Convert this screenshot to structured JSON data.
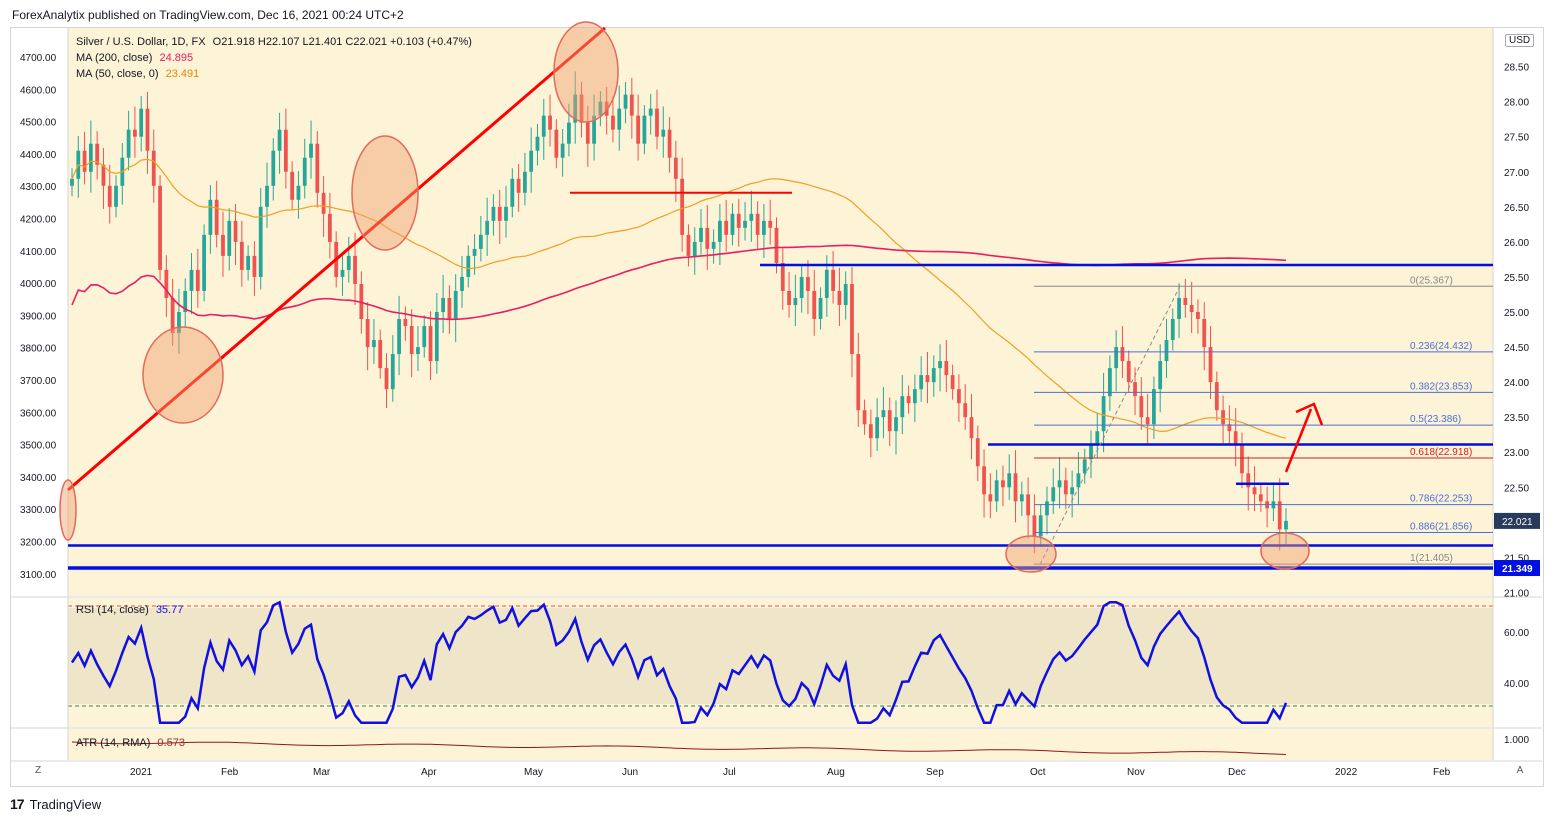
{
  "publisher_line": "ForexAnalytix published on TradingView.com, Dec 16, 2021 00:24 UTC+2",
  "legend": {
    "symbol": "Silver / U.S. Dollar, 1D, FX",
    "ohlc": "O21.918  H22.107  L21.401  C22.021  +0.103 (+0.47%)",
    "ma200_label": "MA (200, close)",
    "ma200_value": "24.895",
    "ma50_label": "MA (50, close, 0)",
    "ma50_value": "23.491",
    "rsi_label": "RSI (14, close)",
    "rsi_value": "35.77",
    "atr_label": "ATR (14, RMA)",
    "atr_value": "0.573"
  },
  "colors": {
    "background": "#fdf3d6",
    "candle_up": "#26a69a",
    "candle_down": "#ef5350",
    "ma200": "#e91e63",
    "ma50": "#f0a020",
    "rsi": "#1010e0",
    "trend": "#ff0000",
    "support": "#0010e0"
  },
  "currency_button": "USD",
  "logo_text": "TradingView",
  "corner_left": "Z",
  "corner_right": "A",
  "chart_data": {
    "type": "candlestick",
    "left_axis_ticks": [
      "4700.00",
      "4600.00",
      "4500.00",
      "4400.00",
      "4300.00",
      "4200.00",
      "4100.00",
      "4000.00",
      "3900.00",
      "3800.00",
      "3700.00",
      "3600.00",
      "3500.00",
      "3400.00",
      "3300.00",
      "3200.00",
      "3100.00"
    ],
    "right_axis_ticks": [
      "28.50",
      "28.00",
      "27.50",
      "27.00",
      "26.50",
      "26.00",
      "25.50",
      "25.00",
      "24.50",
      "24.00",
      "23.50",
      "23.00",
      "22.50",
      "22.00",
      "21.50",
      "21.00"
    ],
    "right_axis_ylim": [
      20.95,
      29.05
    ],
    "x_ticks": [
      "2021",
      "Feb",
      "Mar",
      "Apr",
      "May",
      "Jun",
      "Jul",
      "Aug",
      "Sep",
      "Oct",
      "Nov",
      "Dec",
      "2022",
      "Feb"
    ],
    "price_badges": {
      "last": "22.021",
      "support": "21.349"
    },
    "fib_levels": [
      {
        "label": "0(25.367)",
        "value": 25.367
      },
      {
        "label": "0.236(24.432)",
        "value": 24.432
      },
      {
        "label": "0.382(23.853)",
        "value": 23.853
      },
      {
        "label": "0.5(23.386)",
        "value": 23.386
      },
      {
        "label": "0.618(22.918)",
        "value": 22.918
      },
      {
        "label": "0.786(22.253)",
        "value": 22.253
      },
      {
        "label": "0.886(21.856)",
        "value": 21.856
      },
      {
        "label": "1(21.405)",
        "value": 21.405
      }
    ],
    "horizontal_levels": [
      25.67,
      23.11,
      21.67,
      21.349
    ],
    "rsi_ticks": [
      "60.00",
      "40.00"
    ],
    "atr_ticks": [
      "1.000"
    ],
    "close_series": [
      26.9,
      27.3,
      27.0,
      27.4,
      27.1,
      26.8,
      26.5,
      26.8,
      27.2,
      27.6,
      27.5,
      27.9,
      27.3,
      26.8,
      25.6,
      25.2,
      24.7,
      25.0,
      25.3,
      25.6,
      25.3,
      26.1,
      26.6,
      26.1,
      25.8,
      26.3,
      26.0,
      25.6,
      25.8,
      25.5,
      26.5,
      26.8,
      27.3,
      27.6,
      27.0,
      26.6,
      26.8,
      27.2,
      27.4,
      26.7,
      26.4,
      26.0,
      25.5,
      25.6,
      25.8,
      25.4,
      24.9,
      24.5,
      24.6,
      24.2,
      23.9,
      24.4,
      24.9,
      24.8,
      24.4,
      24.5,
      24.8,
      24.3,
      25.0,
      25.2,
      24.9,
      25.3,
      25.5,
      25.8,
      25.9,
      26.1,
      26.3,
      26.5,
      26.3,
      26.5,
      26.9,
      26.7,
      27.0,
      27.3,
      27.5,
      27.8,
      27.6,
      27.2,
      27.4,
      27.7,
      28.1,
      27.7,
      27.4,
      27.8,
      28.0,
      27.8,
      27.6,
      27.9,
      28.1,
      27.8,
      27.4,
      27.8,
      27.9,
      27.5,
      27.6,
      27.2,
      26.9,
      26.1,
      25.8,
      26.0,
      26.2,
      25.9,
      26.0,
      26.3,
      26.1,
      26.4,
      26.2,
      26.3,
      26.4,
      26.1,
      26.3,
      26.2,
      25.7,
      25.3,
      25.1,
      25.2,
      25.5,
      25.3,
      24.9,
      25.2,
      25.6,
      25.3,
      25.1,
      25.4,
      24.4,
      23.6,
      23.4,
      23.2,
      23.5,
      23.6,
      23.3,
      23.5,
      23.8,
      23.7,
      23.9,
      24.1,
      24.0,
      24.2,
      24.3,
      24.1,
      23.9,
      23.7,
      23.5,
      23.2,
      22.8,
      22.4,
      22.3,
      22.6,
      22.5,
      22.7,
      22.3,
      22.4,
      22.1,
      21.8,
      22.1,
      22.3,
      22.5,
      22.6,
      22.4,
      22.5,
      22.7,
      22.9,
      23.1,
      23.3,
      23.8,
      24.2,
      24.5,
      24.3,
      24.0,
      23.8,
      23.5,
      23.4,
      23.9,
      24.3,
      24.6,
      24.9,
      25.2,
      25.1,
      25.0,
      24.9,
      24.5,
      24.0,
      23.6,
      23.4,
      23.3,
      23.1,
      22.7,
      22.5,
      22.4,
      22.3,
      22.2,
      22.3,
      21.9,
      22.021
    ]
  }
}
